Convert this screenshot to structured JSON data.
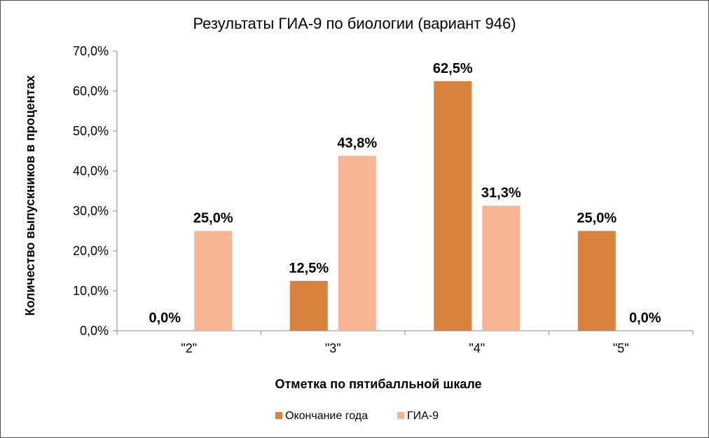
{
  "chart_data": {
    "type": "bar",
    "title": "Результаты ГИА-9 по биологии (вариант 946)",
    "xlabel": "Отметка по пятибалльной шкале",
    "ylabel": "Количество выпускников в процентах",
    "categories": [
      "\"2\"",
      "\"3\"",
      "\"4\"",
      "\"5\""
    ],
    "series": [
      {
        "name": "Окончание года",
        "values": [
          0.0,
          12.5,
          62.5,
          25.0
        ],
        "color": "#d9823f"
      },
      {
        "name": "ГИА-9",
        "values": [
          25.0,
          43.8,
          31.3,
          0.0
        ],
        "color": "#f8b593"
      }
    ],
    "data_labels": [
      [
        "0,0%",
        "12,5%",
        "62,5%",
        "25,0%"
      ],
      [
        "25,0%",
        "43,8%",
        "31,3%",
        "0,0%"
      ]
    ],
    "ylim": [
      0,
      70
    ],
    "yticks": [
      0,
      10,
      20,
      30,
      40,
      50,
      60,
      70
    ],
    "ytick_labels": [
      "0,0%",
      "10,0%",
      "20,0%",
      "30,0%",
      "40,0%",
      "50,0%",
      "60,0%",
      "70,0%"
    ],
    "grid": false,
    "legend_position": "bottom"
  }
}
